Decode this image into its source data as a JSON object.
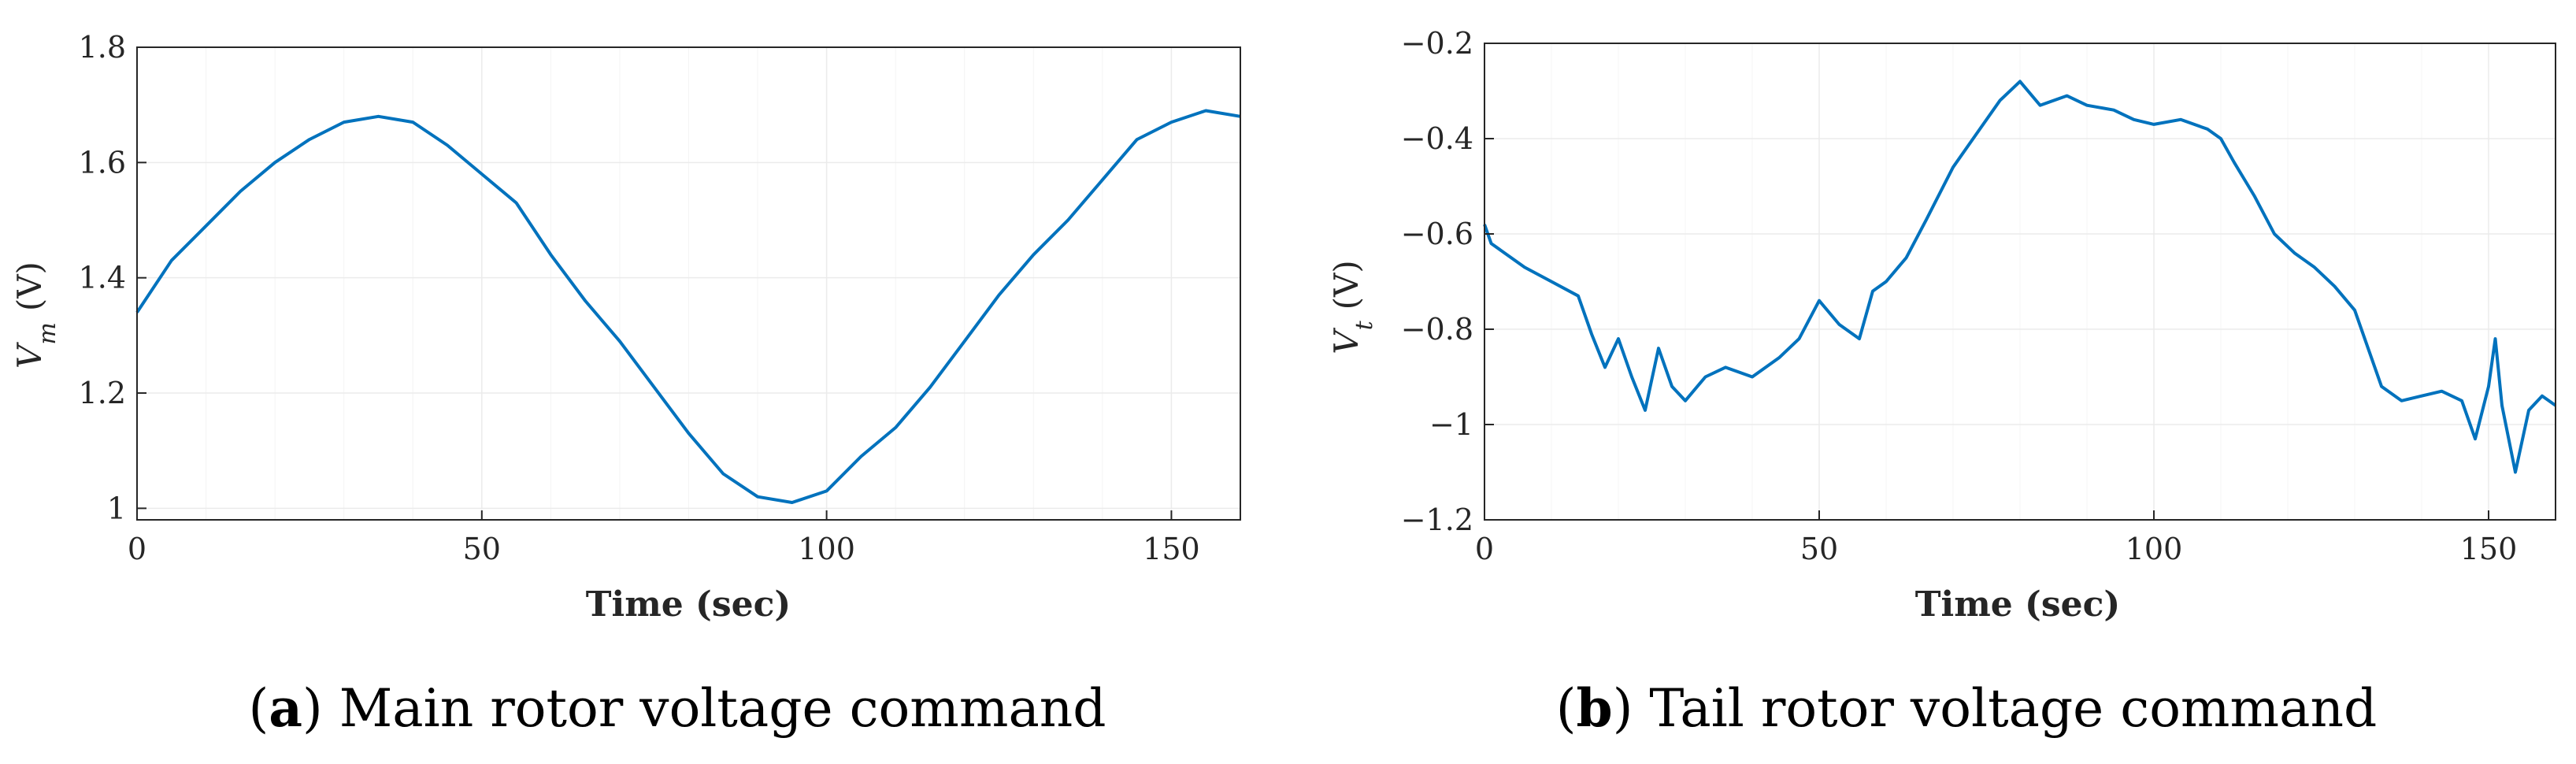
{
  "figure": {
    "captions": [
      {
        "letter": "a",
        "text": "Main rotor voltage command"
      },
      {
        "letter": "b",
        "text": "Tail rotor voltage command"
      }
    ]
  },
  "colors": {
    "series": "#0072BD",
    "grid": "#ebebeb",
    "axis": "#262626"
  },
  "chart_data": [
    {
      "type": "line",
      "title": "",
      "xlabel": "Time (sec)",
      "ylabel_symbol": "V",
      "ylabel_subscript": "m",
      "ylabel_unit": "(V)",
      "xlim": [
        0,
        160
      ],
      "ylim": [
        0.98,
        1.8
      ],
      "xticks": [
        0,
        50,
        100,
        150
      ],
      "xtick_labels": [
        "0",
        "50",
        "100",
        "150"
      ],
      "yticks": [
        1,
        1.2,
        1.4,
        1.6,
        1.8
      ],
      "ytick_labels": [
        "1",
        "1.2",
        "1.4",
        "1.6",
        "1.8"
      ],
      "grid": true,
      "series": [
        {
          "color": "#0072BD",
          "x": [
            0,
            5,
            10,
            15,
            20,
            25,
            30,
            35,
            40,
            45,
            50,
            55,
            60,
            65,
            70,
            75,
            80,
            85,
            90,
            95,
            100,
            105,
            110,
            115,
            120,
            125,
            130,
            135,
            140,
            145,
            150,
            155,
            160
          ],
          "y": [
            1.34,
            1.43,
            1.49,
            1.55,
            1.6,
            1.64,
            1.67,
            1.68,
            1.67,
            1.63,
            1.58,
            1.53,
            1.44,
            1.36,
            1.29,
            1.21,
            1.13,
            1.06,
            1.02,
            1.01,
            1.03,
            1.09,
            1.14,
            1.21,
            1.29,
            1.37,
            1.44,
            1.5,
            1.57,
            1.64,
            1.67,
            1.69,
            1.68
          ]
        }
      ]
    },
    {
      "type": "line",
      "title": "",
      "xlabel": "Time (sec)",
      "ylabel_symbol": "V",
      "ylabel_subscript": "t",
      "ylabel_unit": "(V)",
      "xlim": [
        0,
        160
      ],
      "ylim": [
        -1.2,
        -0.2
      ],
      "xticks": [
        0,
        50,
        100,
        150
      ],
      "xtick_labels": [
        "0",
        "50",
        "100",
        "150"
      ],
      "yticks": [
        -1.2,
        -1,
        -0.8,
        -0.6,
        -0.4,
        -0.2
      ],
      "ytick_labels": [
        "−1.2",
        "−1",
        "−0.8",
        "−0.6",
        "−0.4",
        "−0.2"
      ],
      "grid": true,
      "series": [
        {
          "color": "#0072BD",
          "x": [
            0,
            1,
            3,
            6,
            10,
            14,
            16,
            18,
            20,
            22,
            24,
            26,
            28,
            30,
            33,
            36,
            40,
            44,
            47,
            50,
            53,
            56,
            58,
            60,
            63,
            66,
            70,
            74,
            77,
            80,
            83,
            87,
            90,
            94,
            97,
            100,
            104,
            108,
            110,
            112,
            115,
            118,
            121,
            124,
            127,
            130,
            132,
            134,
            137,
            140,
            143,
            146,
            148,
            150,
            151,
            152,
            154,
            156,
            158,
            160
          ],
          "y": [
            -0.58,
            -0.62,
            -0.64,
            -0.67,
            -0.7,
            -0.73,
            -0.81,
            -0.88,
            -0.82,
            -0.9,
            -0.97,
            -0.84,
            -0.92,
            -0.95,
            -0.9,
            -0.88,
            -0.9,
            -0.86,
            -0.82,
            -0.74,
            -0.79,
            -0.82,
            -0.72,
            -0.7,
            -0.65,
            -0.57,
            -0.46,
            -0.38,
            -0.32,
            -0.28,
            -0.33,
            -0.31,
            -0.33,
            -0.34,
            -0.36,
            -0.37,
            -0.36,
            -0.38,
            -0.4,
            -0.45,
            -0.52,
            -0.6,
            -0.64,
            -0.67,
            -0.71,
            -0.76,
            -0.84,
            -0.92,
            -0.95,
            -0.94,
            -0.93,
            -0.95,
            -1.03,
            -0.92,
            -0.82,
            -0.96,
            -1.1,
            -0.97,
            -0.94,
            -0.96
          ]
        }
      ]
    }
  ]
}
